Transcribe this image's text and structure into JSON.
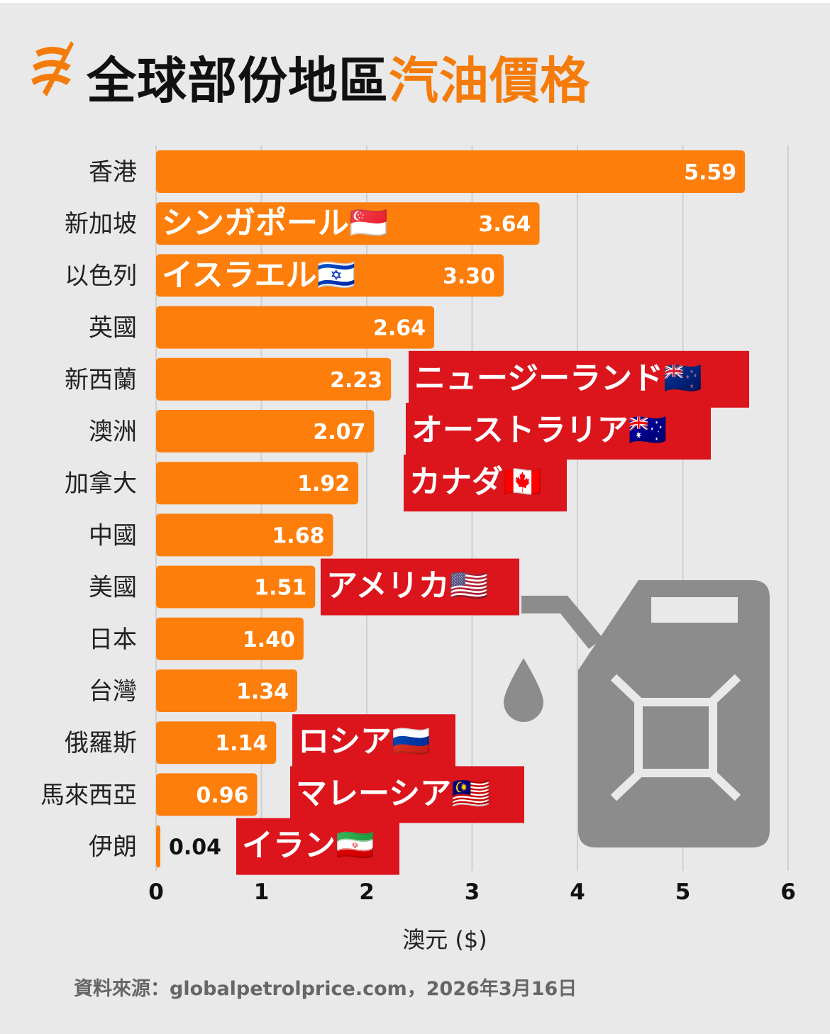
{
  "header": {
    "title_main": "全球部份地區",
    "title_accent": "汽油價格",
    "logo_icon": "sbs-logo-icon"
  },
  "colors": {
    "background": "#e9e9e9",
    "bar": "#fd7e0b",
    "accent": "#f57b0a",
    "label_box": "#dc141c",
    "grid": "#cfcfcf",
    "canister": "#8c8c8c"
  },
  "decoration": {
    "icon": "jerry-can-fuel-icon"
  },
  "footer": {
    "source": "資料來源：globalpetrolprice.com，2026年3月16日"
  },
  "chart_data": {
    "type": "bar",
    "orientation": "horizontal",
    "title": "全球部份地區汽油價格",
    "xlabel": "澳元 ($)",
    "ylabel": "",
    "xlim": [
      0,
      6
    ],
    "xticks": [
      "0",
      "1",
      "2",
      "3",
      "4",
      "5",
      "6"
    ],
    "grid": true,
    "categories": [
      "香港",
      "新加坡",
      "以色列",
      "英國",
      "新西蘭",
      "澳洲",
      "加拿大",
      "中國",
      "美國",
      "日本",
      "台灣",
      "俄羅斯",
      "馬來西亞",
      "伊朗"
    ],
    "values": [
      5.59,
      3.64,
      3.3,
      2.64,
      2.23,
      2.07,
      1.92,
      1.68,
      1.51,
      1.4,
      1.34,
      1.14,
      0.96,
      0.04
    ],
    "value_labels": [
      "5.59",
      "3.64",
      "3.30",
      "2.64",
      "2.23",
      "2.07",
      "1.92",
      "1.68",
      "1.51",
      "1.40",
      "1.34",
      "1.14",
      "0.96",
      "0.04"
    ],
    "annotations": [
      {
        "category": "新加坡",
        "text": "シンガポール",
        "flag": "🇸🇬",
        "style": "plain"
      },
      {
        "category": "以色列",
        "text": "イスラエル",
        "flag": "🇮🇱",
        "style": "plain"
      },
      {
        "category": "新西蘭",
        "text": "ニュージーランド",
        "flag": "🇳🇿",
        "style": "box"
      },
      {
        "category": "澳洲",
        "text": "オーストラリア",
        "flag": "🇦🇺",
        "style": "box"
      },
      {
        "category": "加拿大",
        "text": "カナダ",
        "flag": "🇨🇦",
        "style": "box"
      },
      {
        "category": "美國",
        "text": "アメリカ",
        "flag": "🇺🇸",
        "style": "box"
      },
      {
        "category": "俄羅斯",
        "text": "ロシア",
        "flag": "🇷🇺",
        "style": "box"
      },
      {
        "category": "馬來西亞",
        "text": "マレーシア",
        "flag": "🇲🇾",
        "style": "box"
      },
      {
        "category": "伊朗",
        "text": "イラン",
        "flag": "🇮🇷",
        "style": "box"
      }
    ]
  }
}
